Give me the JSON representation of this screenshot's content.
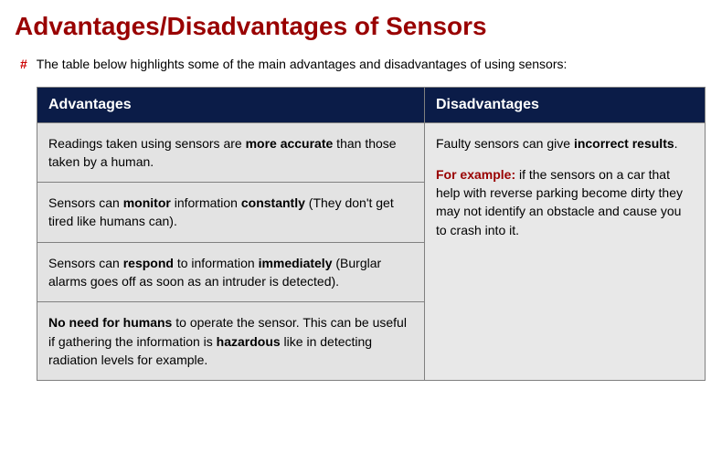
{
  "colors": {
    "title": "#990000",
    "hash": "#cc0000",
    "header_bg": "#0b1c48",
    "header_text": "#ffffff",
    "cell_bg": "#e3e3e3",
    "cell_disadv_bg": "#e8e8e8",
    "border": "#808080",
    "example_label": "#990000"
  },
  "title": "Advantages/Disadvantages of Sensors",
  "hash": "#",
  "intro": "The table below highlights some of the main advantages and disadvantages of using sensors:",
  "headers": {
    "advantages": "Advantages",
    "disadvantages": "Disadvantages"
  },
  "advantages": [
    {
      "pre": "Readings taken using sensors are ",
      "b1": "more accurate",
      "post": " than those taken by a human."
    },
    {
      "pre": "Sensors can ",
      "b1": "monitor",
      "mid": " information ",
      "b2": "constantly",
      "post": " (They don't get tired like humans can)."
    },
    {
      "pre": "Sensors can ",
      "b1": "respond",
      "mid": " to information ",
      "b2": "immediately",
      "post": " (Burglar alarms goes off as soon as an intruder is detected)."
    },
    {
      "b1": "No need for humans",
      "mid": " to operate the sensor. This can be useful if gathering the information is ",
      "b2": "hazardous",
      "post": " like in detecting radiation levels for example."
    }
  ],
  "disadvantage": {
    "p1_pre": "Faulty sensors can give ",
    "p1_bold": "incorrect results",
    "p1_post": ".",
    "example_label": "For example:",
    "example_text": " if the sensors on a car that help with reverse parking become dirty they may not identify an obstacle and cause you to crash into it."
  }
}
